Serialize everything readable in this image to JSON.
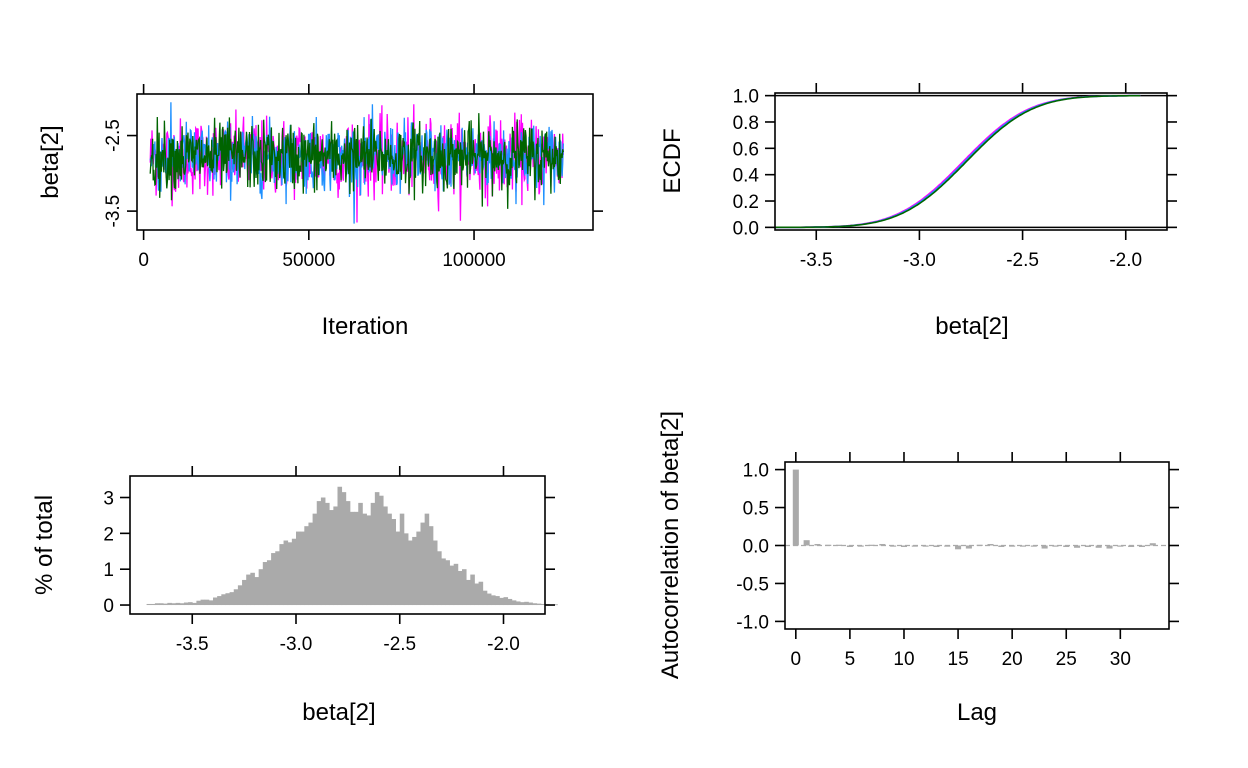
{
  "chart_data": [
    {
      "id": "trace",
      "type": "line",
      "xlabel": "Iteration",
      "ylabel": "beta[2]",
      "xlim": [
        -2000,
        136000
      ],
      "ylim": [
        -3.75,
        -1.95
      ],
      "x_ticks": [
        0,
        50000,
        100000
      ],
      "x_tick_labels": [
        "0",
        "50000",
        "100000"
      ],
      "y_ticks": [
        -3.5,
        -2.5
      ],
      "y_tick_labels": [
        "-3.5",
        "-2.5"
      ],
      "series": [
        {
          "color": "#ff00ff",
          "x_range": [
            2000,
            127000
          ],
          "points": 700,
          "mean": -2.78,
          "sd": 0.25
        },
        {
          "color": "#1e90ff",
          "x_range": [
            2000,
            127000
          ],
          "points": 700,
          "mean": -2.78,
          "sd": 0.22
        },
        {
          "color": "#006400",
          "x_range": [
            2000,
            127000
          ],
          "points": 700,
          "mean": -2.78,
          "sd": 0.22
        }
      ]
    },
    {
      "id": "ecdf",
      "type": "line",
      "xlabel": "beta[2]",
      "ylabel": "ECDF",
      "xlim": [
        -3.7,
        -1.8
      ],
      "ylim": [
        -0.02,
        1.02
      ],
      "x_ticks": [
        -3.5,
        -3.0,
        -2.5,
        -2.0
      ],
      "x_tick_labels": [
        "-3.5",
        "-3.0",
        "-2.5",
        "-2.0"
      ],
      "y_ticks": [
        0.0,
        0.2,
        0.4,
        0.6,
        0.8,
        1.0
      ],
      "y_tick_labels": [
        "0.0",
        "0.2",
        "0.4",
        "0.6",
        "0.8",
        "1.0"
      ],
      "reference_lines": [
        0,
        1
      ],
      "x_range": [
        -3.7,
        -1.93
      ],
      "mean": -2.78,
      "sd": 0.25,
      "series_colors": [
        "#ff00ff",
        "#1e90ff",
        "#006400"
      ]
    },
    {
      "id": "histogram",
      "type": "bar",
      "xlabel": "beta[2]",
      "ylabel": "% of total",
      "xlim": [
        -3.8,
        -1.8
      ],
      "ylim": [
        -0.25,
        3.6
      ],
      "x_ticks": [
        -3.5,
        -3.0,
        -2.5,
        -2.0
      ],
      "x_tick_labels": [
        "-3.5",
        "-3.0",
        "-2.5",
        "-2.0"
      ],
      "y_ticks": [
        0,
        1,
        2,
        3
      ],
      "y_tick_labels": [
        "0",
        "1",
        "2",
        "3"
      ],
      "bar_color": "#aaaaaa",
      "bin_start": -3.72,
      "bin_width": 0.02,
      "values": [
        0.03,
        0.03,
        0.05,
        0.05,
        0.04,
        0.06,
        0.05,
        0.06,
        0.05,
        0.07,
        0.08,
        0.06,
        0.12,
        0.15,
        0.15,
        0.13,
        0.21,
        0.25,
        0.3,
        0.33,
        0.36,
        0.44,
        0.55,
        0.7,
        0.85,
        0.9,
        0.78,
        1.0,
        1.2,
        1.25,
        1.45,
        1.5,
        1.7,
        1.8,
        1.75,
        1.85,
        2.05,
        2.05,
        2.2,
        2.3,
        2.55,
        2.9,
        3.0,
        2.85,
        2.65,
        2.75,
        3.3,
        3.15,
        2.9,
        2.6,
        2.6,
        2.85,
        2.55,
        2.5,
        2.85,
        3.15,
        3.05,
        2.75,
        2.55,
        2.4,
        2.05,
        2.55,
        2.0,
        1.8,
        1.9,
        2.05,
        2.3,
        2.55,
        2.2,
        1.8,
        1.5,
        1.3,
        1.25,
        1.1,
        1.15,
        0.95,
        1.0,
        0.7,
        0.85,
        0.6,
        0.65,
        0.4,
        0.32,
        0.27,
        0.25,
        0.2,
        0.22,
        0.17,
        0.13,
        0.1,
        0.08,
        0.09,
        0.07,
        0.05,
        0.04,
        0.03,
        0.03,
        0.02,
        0.02
      ]
    },
    {
      "id": "autocorr",
      "type": "bar",
      "xlabel": "Lag",
      "ylabel": "Autocorrelation of beta[2]",
      "xlim": [
        -1,
        34.5
      ],
      "ylim": [
        -1.1,
        1.1
      ],
      "x_ticks": [
        0,
        5,
        10,
        15,
        20,
        25,
        30
      ],
      "x_tick_labels": [
        "0",
        "5",
        "10",
        "15",
        "20",
        "25",
        "30"
      ],
      "y_ticks": [
        -1.0,
        -0.5,
        0.0,
        0.5,
        1.0
      ],
      "y_tick_labels": [
        "-1.0",
        "-0.5",
        "0.0",
        "0.5",
        "1.0"
      ],
      "bar_color": "#aaaaaa",
      "zero_line": 0,
      "lags": [
        0,
        1,
        2,
        3,
        4,
        5,
        6,
        7,
        8,
        9,
        10,
        11,
        12,
        13,
        14,
        15,
        16,
        17,
        18,
        19,
        20,
        21,
        22,
        23,
        24,
        25,
        26,
        27,
        28,
        29,
        30,
        31,
        32,
        33
      ],
      "values": [
        1.0,
        0.07,
        0.02,
        0.01,
        0.01,
        -0.02,
        0.0,
        0.01,
        0.02,
        -0.01,
        -0.02,
        -0.01,
        -0.01,
        -0.02,
        0.0,
        -0.05,
        -0.04,
        0.01,
        0.02,
        -0.02,
        -0.01,
        -0.01,
        -0.01,
        -0.04,
        -0.01,
        -0.02,
        -0.03,
        -0.02,
        -0.03,
        -0.04,
        -0.01,
        -0.02,
        -0.02,
        0.03
      ]
    }
  ]
}
